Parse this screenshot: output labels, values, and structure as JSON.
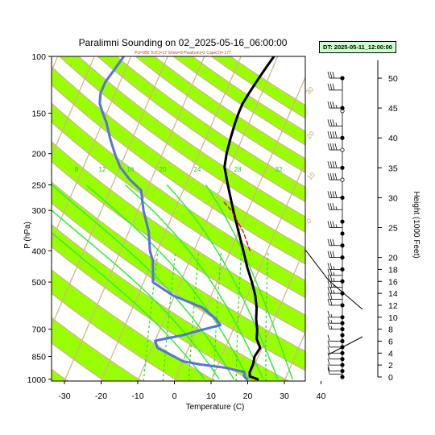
{
  "title": "Paralimni Sounding on 02_2025-05-16_06:00:00",
  "subtitle": "Pcl=956 Tc(C)=17 Show=9 Pwat(cm)=2 Cape(J)= 177",
  "dt_label": "DT: 2025-05-11_12:00:00",
  "colors": {
    "temperature": "#000000",
    "dewpoint": "#5573d8",
    "parcel": "#cc0000",
    "dry_adiabat_band": "#99ff00",
    "dry_adiabat_line": "#d2b48c",
    "moist_adiabat": "#33ee33",
    "mixing_ratio": "#33dd33"
  },
  "chart_data": {
    "type": "line",
    "xlabel": "Temperature (C)",
    "ylabel": "P (hPa)",
    "y2label": "Height (1000 Feet)",
    "x_ticks": [
      "-30",
      "-20",
      "-10",
      "0",
      "10",
      "20",
      "30",
      "40"
    ],
    "xlim": [
      -33,
      45
    ],
    "y_ticks": [
      "100",
      "150",
      "200",
      "250",
      "300",
      "400",
      "500",
      "700",
      "850",
      "1000"
    ],
    "y_tick_values": [
      100,
      150,
      200,
      250,
      300,
      400,
      500,
      700,
      850,
      1000
    ],
    "ylim": [
      1013,
      100
    ],
    "y_scale": "log",
    "height_ticks": [
      "0",
      "2",
      "4",
      "6",
      "8",
      "10",
      "12",
      "14",
      "16",
      "18",
      "20",
      "25",
      "30",
      "35",
      "40",
      "45",
      "50"
    ],
    "height_tick_values": [
      0,
      2,
      4,
      6,
      8,
      10,
      12,
      14,
      16,
      18,
      20,
      25,
      30,
      35,
      40,
      45,
      50
    ],
    "moist_adiabat_labels": [
      "8",
      "12",
      "16",
      "20",
      "24",
      "28",
      "32"
    ],
    "mixing_ratio_labels": [
      "2",
      "3",
      "5",
      "8",
      "12",
      "20"
    ],
    "dry_adiabat_labels": [
      "-30",
      "-20",
      "-10",
      "0",
      "10",
      "20",
      "30",
      "40",
      "50",
      "60",
      "70",
      "80",
      "90",
      "100",
      "110",
      "120",
      "130",
      "140",
      "150"
    ],
    "series": [
      {
        "name": "",
        "role": "temperature",
        "points": [
          [
            1000,
            22.5
          ],
          [
            980,
            20
          ],
          [
            950,
            19.5
          ],
          [
            900,
            19.5
          ],
          [
            850,
            19
          ],
          [
            800,
            19.5
          ],
          [
            750,
            17.5
          ],
          [
            700,
            16.5
          ],
          [
            650,
            15
          ],
          [
            600,
            13.8
          ],
          [
            550,
            12
          ],
          [
            500,
            9.5
          ],
          [
            450,
            6.5
          ],
          [
            400,
            3.5
          ],
          [
            350,
            0
          ],
          [
            300,
            -4
          ],
          [
            250,
            -8.5
          ],
          [
            220,
            -11.5
          ],
          [
            200,
            -12.5
          ],
          [
            180,
            -13.2
          ],
          [
            160,
            -13.8
          ],
          [
            150,
            -14
          ],
          [
            140,
            -14
          ],
          [
            130,
            -13.5
          ],
          [
            120,
            -12.8
          ],
          [
            110,
            -12
          ],
          [
            100,
            -11
          ]
        ]
      },
      {
        "name": "",
        "role": "dewpoint",
        "points": [
          [
            1000,
            19.5
          ],
          [
            980,
            18.5
          ],
          [
            950,
            18
          ],
          [
            920,
            12
          ],
          [
            900,
            5
          ],
          [
            880,
            0
          ],
          [
            850,
            -3
          ],
          [
            800,
            -8.5
          ],
          [
            760,
            -10
          ],
          [
            730,
            -3
          ],
          [
            700,
            2
          ],
          [
            680,
            6
          ],
          [
            650,
            4
          ],
          [
            600,
            -1
          ],
          [
            550,
            -10.5
          ],
          [
            500,
            -17.5
          ],
          [
            470,
            -18.5
          ],
          [
            430,
            -20
          ],
          [
            400,
            -22
          ],
          [
            350,
            -24.5
          ],
          [
            300,
            -28.5
          ],
          [
            260,
            -31.5
          ],
          [
            240,
            -36
          ],
          [
            220,
            -40
          ],
          [
            200,
            -43
          ],
          [
            180,
            -46
          ],
          [
            160,
            -49
          ],
          [
            150,
            -51
          ],
          [
            140,
            -53
          ],
          [
            130,
            -54
          ],
          [
            120,
            -54
          ],
          [
            110,
            -53
          ],
          [
            100,
            -52
          ]
        ]
      },
      {
        "name": "",
        "role": "parcel",
        "points": [
          [
            400,
            5.3
          ],
          [
            350,
            1.3
          ],
          [
            300,
            -4.5
          ],
          [
            280,
            -8
          ]
        ]
      }
    ]
  },
  "wind_barbs": [
    {
      "height": 0.5,
      "dir": 200,
      "speed": 10
    },
    {
      "height": 1,
      "dir": 220,
      "speed": 10
    },
    {
      "height": 2,
      "dir": 250,
      "speed": 10
    },
    {
      "height": 3,
      "dir": 260,
      "speed": 10
    },
    {
      "height": 4,
      "dir": 270,
      "speed": 10
    },
    {
      "height": 5,
      "dir": 270,
      "speed": 10
    },
    {
      "height": 6,
      "dir": 270,
      "speed": 10
    },
    {
      "height": 8,
      "dir": 270,
      "speed": 15
    },
    {
      "height": 9,
      "dir": 275,
      "speed": 15
    },
    {
      "height": 10,
      "dir": 275,
      "speed": 15
    },
    {
      "height": 12,
      "dir": 280,
      "speed": 20
    },
    {
      "height": 13,
      "dir": 280,
      "speed": 20
    },
    {
      "height": 14,
      "dir": 280,
      "speed": 25
    },
    {
      "height": 15,
      "dir": 280,
      "speed": 25
    },
    {
      "height": 16,
      "dir": 280,
      "speed": 25
    },
    {
      "height": 17,
      "dir": 285,
      "speed": 25
    },
    {
      "height": 18,
      "dir": 285,
      "speed": 25
    },
    {
      "height": 20,
      "dir": 285,
      "speed": 30
    },
    {
      "height": 22,
      "dir": 285,
      "speed": 30
    },
    {
      "height": 25,
      "dir": 285,
      "speed": 35
    },
    {
      "height": 28,
      "dir": 290,
      "speed": 35
    },
    {
      "height": 30,
      "dir": 290,
      "speed": 40
    },
    {
      "height": 33,
      "dir": 290,
      "speed": 40
    },
    {
      "height": 35,
      "dir": 290,
      "speed": 40
    },
    {
      "height": 38,
      "dir": 290,
      "speed": 40
    },
    {
      "height": 40,
      "dir": 290,
      "speed": 40
    },
    {
      "height": 42,
      "dir": 290,
      "speed": 35
    },
    {
      "height": 45,
      "dir": 290,
      "speed": 35
    },
    {
      "height": 48,
      "dir": 290,
      "speed": 30
    },
    {
      "height": 50,
      "dir": 290,
      "speed": 30
    }
  ],
  "height_markers": [
    {
      "height": 0,
      "style": "filled"
    },
    {
      "height": 1,
      "style": "filled"
    },
    {
      "height": 2,
      "style": "filled"
    },
    {
      "height": 3,
      "style": "filled"
    },
    {
      "height": 4,
      "style": "filled"
    },
    {
      "height": 5,
      "style": "filled"
    },
    {
      "height": 6,
      "style": "filled"
    },
    {
      "height": 7,
      "style": "filled"
    },
    {
      "height": 8,
      "style": "filled"
    },
    {
      "height": 9,
      "style": "filled"
    },
    {
      "height": 10,
      "style": "filled"
    },
    {
      "height": 12,
      "style": "filled"
    },
    {
      "height": 14,
      "style": "filled"
    },
    {
      "height": 16,
      "style": "filled"
    },
    {
      "height": 18,
      "style": "filled"
    },
    {
      "height": 20,
      "style": "filled"
    },
    {
      "height": 22,
      "style": "filled"
    },
    {
      "height": 24,
      "style": "filled"
    },
    {
      "height": 26,
      "style": "filled"
    },
    {
      "height": 30,
      "style": "filled"
    },
    {
      "height": 33,
      "style": "open"
    },
    {
      "height": 35,
      "style": "filled"
    },
    {
      "height": 38,
      "style": "open"
    },
    {
      "height": 40,
      "style": "filled"
    },
    {
      "height": 44.5,
      "style": "open"
    },
    {
      "height": 45,
      "style": "filled"
    },
    {
      "height": 50,
      "style": "filled"
    }
  ]
}
